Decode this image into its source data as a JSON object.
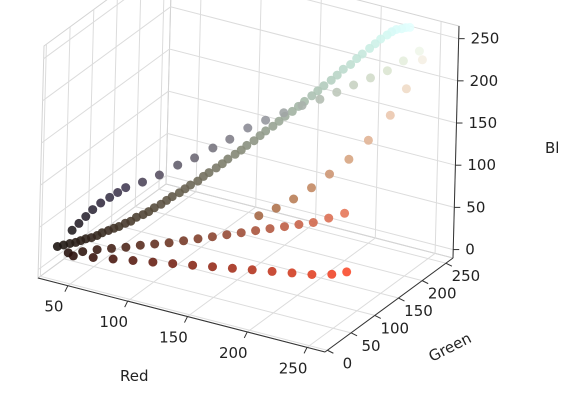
{
  "chart_data": {
    "type": "scatter",
    "title": "",
    "xlabel": "Red",
    "ylabel": "Green",
    "zlabel": "Bl",
    "x_ticks": [
      50,
      100,
      150,
      200,
      250
    ],
    "y_ticks": [
      0,
      50,
      100,
      150,
      200,
      250
    ],
    "z_ticks": [
      0,
      50,
      100,
      150,
      200,
      250
    ],
    "xlim": [
      25,
      265
    ],
    "ylim": [
      -5,
      265
    ],
    "zlim": [
      -10,
      265
    ],
    "grid": true,
    "legend": "none",
    "point_color": "rgb(red, green, blue) of each pixel",
    "series": [
      {
        "points": [
          [
            30,
            22,
            18
          ],
          [
            34,
            25,
            20
          ],
          [
            38,
            28,
            22
          ],
          [
            42,
            30,
            24
          ],
          [
            45,
            33,
            26
          ],
          [
            48,
            36,
            28
          ],
          [
            52,
            38,
            30
          ],
          [
            55,
            42,
            32
          ],
          [
            58,
            45,
            35
          ],
          [
            62,
            48,
            38
          ],
          [
            65,
            52,
            40
          ],
          [
            68,
            55,
            42
          ],
          [
            72,
            58,
            46
          ],
          [
            75,
            62,
            48
          ],
          [
            78,
            66,
            52
          ],
          [
            82,
            70,
            55
          ],
          [
            85,
            74,
            58
          ],
          [
            88,
            78,
            62
          ],
          [
            92,
            82,
            66
          ],
          [
            95,
            86,
            70
          ],
          [
            98,
            90,
            74
          ],
          [
            102,
            95,
            78
          ],
          [
            105,
            99,
            82
          ],
          [
            108,
            103,
            86
          ],
          [
            112,
            108,
            90
          ],
          [
            115,
            112,
            95
          ],
          [
            118,
            116,
            99
          ],
          [
            122,
            121,
            104
          ],
          [
            125,
            126,
            108
          ],
          [
            128,
            130,
            113
          ],
          [
            132,
            135,
            118
          ],
          [
            135,
            140,
            122
          ],
          [
            138,
            144,
            127
          ],
          [
            142,
            149,
            132
          ],
          [
            145,
            154,
            137
          ],
          [
            148,
            158,
            142
          ],
          [
            152,
            163,
            147
          ],
          [
            155,
            168,
            152
          ],
          [
            158,
            173,
            157
          ],
          [
            162,
            178,
            162
          ],
          [
            165,
            183,
            167
          ],
          [
            168,
            188,
            172
          ],
          [
            172,
            193,
            178
          ],
          [
            175,
            198,
            183
          ],
          [
            178,
            203,
            188
          ],
          [
            182,
            208,
            194
          ],
          [
            185,
            213,
            199
          ],
          [
            188,
            218,
            205
          ],
          [
            192,
            223,
            210
          ],
          [
            195,
            228,
            216
          ],
          [
            198,
            232,
            221
          ],
          [
            202,
            237,
            227
          ],
          [
            205,
            241,
            232
          ],
          [
            208,
            245,
            237
          ],
          [
            212,
            248,
            242
          ],
          [
            215,
            250,
            246
          ],
          [
            218,
            252,
            249
          ],
          [
            222,
            253,
            251
          ],
          [
            225,
            254,
            253
          ],
          [
            228,
            255,
            254
          ],
          [
            40,
            20,
            15
          ],
          [
            50,
            25,
            18
          ],
          [
            60,
            30,
            22
          ],
          [
            70,
            35,
            25
          ],
          [
            80,
            40,
            28
          ],
          [
            90,
            45,
            32
          ],
          [
            100,
            50,
            35
          ],
          [
            110,
            55,
            38
          ],
          [
            120,
            60,
            42
          ],
          [
            130,
            65,
            46
          ],
          [
            140,
            70,
            50
          ],
          [
            150,
            75,
            54
          ],
          [
            160,
            80,
            58
          ],
          [
            170,
            85,
            62
          ],
          [
            180,
            90,
            66
          ],
          [
            190,
            95,
            70
          ],
          [
            200,
            100,
            74
          ],
          [
            210,
            105,
            78
          ],
          [
            220,
            112,
            84
          ],
          [
            230,
            120,
            90
          ],
          [
            45,
            18,
            14
          ],
          [
            60,
            22,
            16
          ],
          [
            75,
            26,
            18
          ],
          [
            90,
            30,
            20
          ],
          [
            105,
            34,
            22
          ],
          [
            120,
            38,
            24
          ],
          [
            135,
            42,
            26
          ],
          [
            150,
            46,
            28
          ],
          [
            165,
            50,
            30
          ],
          [
            180,
            54,
            32
          ],
          [
            195,
            58,
            34
          ],
          [
            210,
            62,
            36
          ],
          [
            225,
            66,
            38
          ],
          [
            240,
            70,
            42
          ],
          [
            250,
            76,
            46
          ],
          [
            38,
            32,
            36
          ],
          [
            42,
            36,
            44
          ],
          [
            46,
            40,
            52
          ],
          [
            50,
            44,
            60
          ],
          [
            55,
            48,
            68
          ],
          [
            60,
            54,
            74
          ],
          [
            65,
            58,
            80
          ],
          [
            70,
            62,
            86
          ],
          [
            80,
            72,
            92
          ],
          [
            90,
            82,
            100
          ],
          [
            100,
            95,
            110
          ],
          [
            110,
            105,
            118
          ],
          [
            120,
            118,
            128
          ],
          [
            130,
            128,
            138
          ],
          [
            140,
            140,
            150
          ],
          [
            150,
            152,
            158
          ],
          [
            160,
            165,
            165
          ],
          [
            170,
            178,
            172
          ],
          [
            180,
            190,
            178
          ],
          [
            190,
            200,
            186
          ],
          [
            200,
            210,
            194
          ],
          [
            210,
            220,
            202
          ],
          [
            220,
            230,
            210
          ],
          [
            230,
            238,
            222
          ],
          [
            240,
            246,
            234
          ],
          [
            245,
            240,
            228
          ],
          [
            240,
            220,
            200
          ],
          [
            235,
            200,
            175
          ],
          [
            225,
            180,
            150
          ],
          [
            215,
            165,
            130
          ],
          [
            205,
            150,
            115
          ],
          [
            195,
            138,
            100
          ],
          [
            185,
            126,
            88
          ],
          [
            175,
            115,
            78
          ],
          [
            165,
            104,
            70
          ]
        ]
      }
    ]
  }
}
